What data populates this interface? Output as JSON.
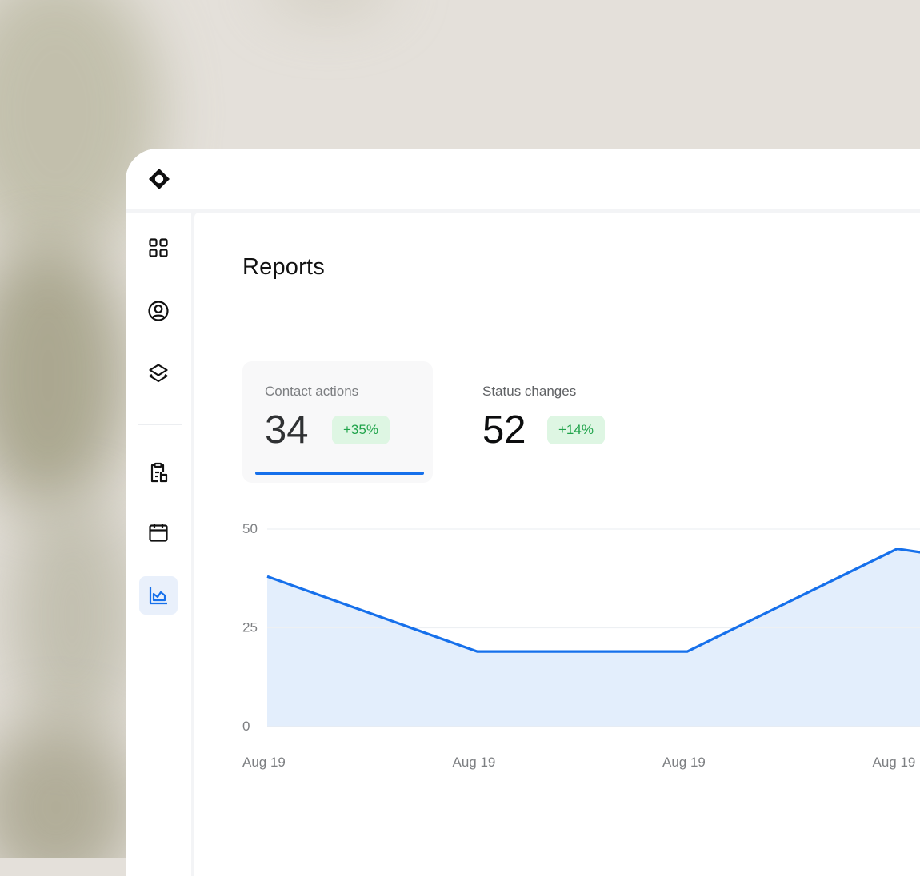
{
  "page": {
    "title": "Reports"
  },
  "sidebar": {
    "items": [
      {
        "icon": "grid-icon",
        "active": false
      },
      {
        "icon": "user-circle-icon",
        "active": false
      },
      {
        "icon": "layers-icon",
        "active": false
      },
      {
        "icon": "clipboard-report-icon",
        "active": false
      },
      {
        "icon": "calendar-icon",
        "active": false
      },
      {
        "icon": "chart-area-icon",
        "active": true
      }
    ]
  },
  "stats": [
    {
      "label": "Contact actions",
      "value": "34",
      "change": "+35%",
      "selected": true
    },
    {
      "label": "Status changes",
      "value": "52",
      "change": "+14%",
      "selected": false
    }
  ],
  "colors": {
    "accent": "#1670eb",
    "area_fill": "#e3eefc",
    "badge_bg": "#def6e3",
    "badge_text": "#1fa34a"
  },
  "chart_data": {
    "type": "area",
    "x": [
      "Aug 19",
      "Aug 19",
      "Aug 19",
      "Aug 19"
    ],
    "series": [
      {
        "values": [
          38,
          19,
          19,
          45
        ]
      }
    ],
    "y_ticks": [
      "50",
      "25",
      "0"
    ],
    "ylim": [
      0,
      50
    ],
    "grid": true,
    "legend": "none"
  }
}
